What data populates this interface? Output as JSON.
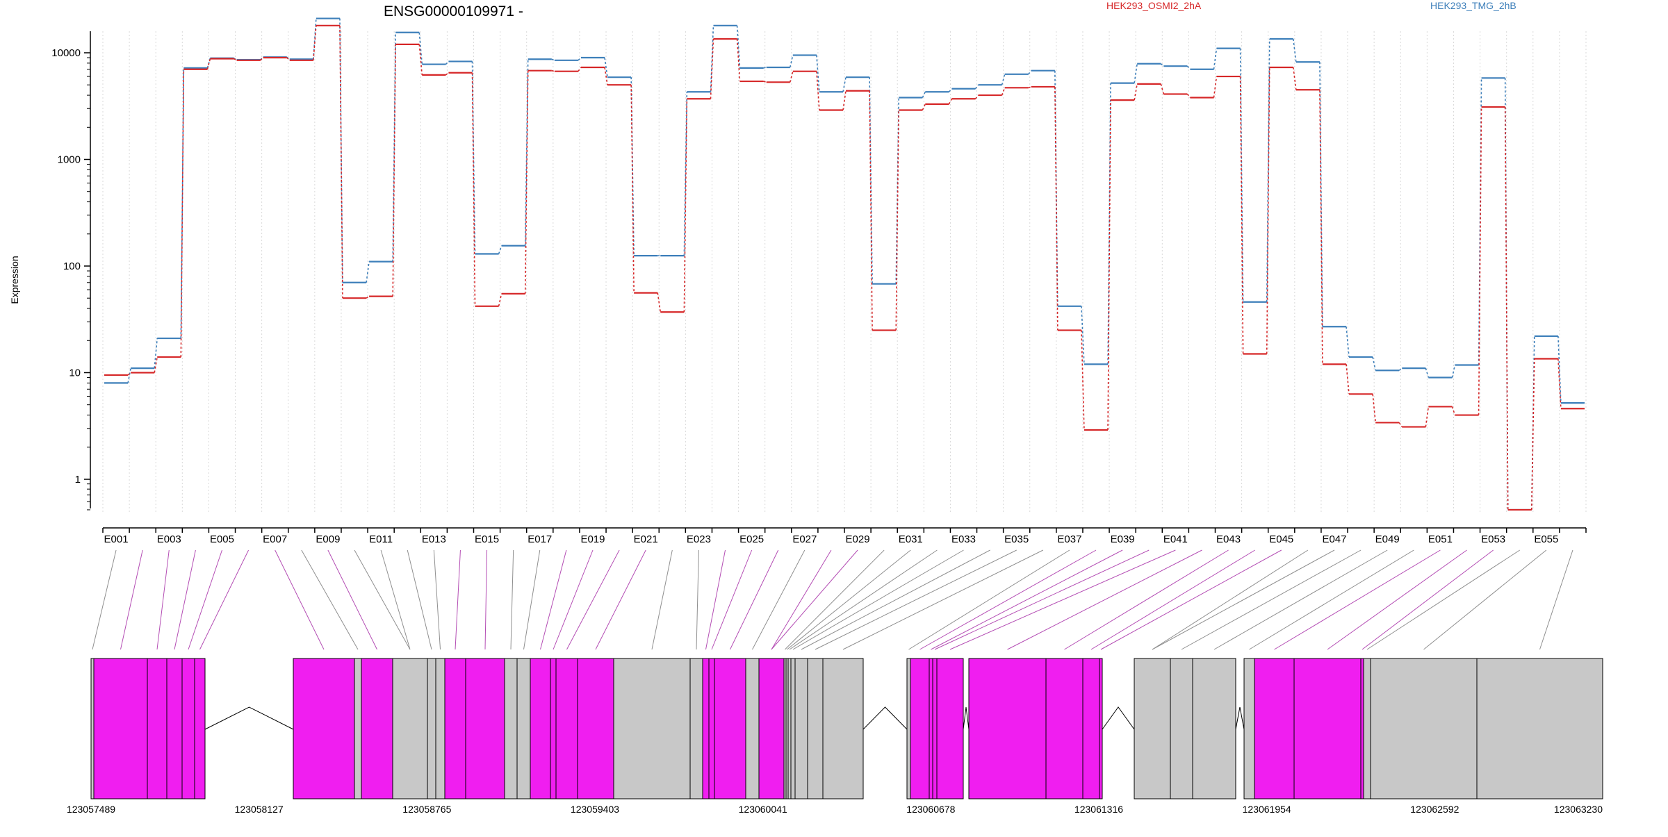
{
  "chart_data": {
    "type": "line",
    "title": "ENSG00000109971 -",
    "ylabel": "Expression",
    "yscale": "log",
    "ylim": [
      0.4,
      32000
    ],
    "ytick_values": [
      1,
      10,
      100,
      1000,
      10000
    ],
    "ytick_labels": [
      "1",
      "10",
      "100",
      "1000",
      "10000"
    ],
    "categories": [
      "E001",
      "E002",
      "E003",
      "E004",
      "E005",
      "E006",
      "E007",
      "E008",
      "E009",
      "E010",
      "E011",
      "E012",
      "E013",
      "E014",
      "E015",
      "E016",
      "E017",
      "E018",
      "E019",
      "E020",
      "E021",
      "E022",
      "E023",
      "E024",
      "E025",
      "E026",
      "E027",
      "E028",
      "E029",
      "E030",
      "E031",
      "E032",
      "E033",
      "E034",
      "E035",
      "E036",
      "E037",
      "E038",
      "E039",
      "E040",
      "E041",
      "E042",
      "E043",
      "E044",
      "E045",
      "E046",
      "E047",
      "E048",
      "E049",
      "E050",
      "E051",
      "E052",
      "E053",
      "E054",
      "E055",
      "E056"
    ],
    "xtick_labels": [
      "E001",
      "E003",
      "E005",
      "E007",
      "E009",
      "E011",
      "E013",
      "E015",
      "E017",
      "E019",
      "E021",
      "E023",
      "E025",
      "E027",
      "E029",
      "E031",
      "E033",
      "E035",
      "E037",
      "E039",
      "E041",
      "E043",
      "E045",
      "E047",
      "E049",
      "E051",
      "E053",
      "E055"
    ],
    "series": [
      {
        "name": "HEK293_OSMI2_2hA",
        "color": "#d62728",
        "values": [
          9.5,
          10,
          14,
          7000,
          8800,
          8500,
          9000,
          8500,
          18000,
          50,
          52,
          12000,
          6200,
          6500,
          42,
          55,
          6800,
          6700,
          7300,
          5000,
          56,
          37,
          3700,
          13500,
          5400,
          5300,
          6700,
          2900,
          4400,
          25,
          2900,
          3300,
          3700,
          4000,
          4700,
          4800,
          25,
          2.9,
          3600,
          5100,
          4100,
          3800,
          6000,
          15,
          7300,
          4500,
          12,
          6.3,
          3.4,
          3.1,
          4.8,
          4,
          3100,
          0.5,
          13.5,
          4.6
        ]
      },
      {
        "name": "HEK293_TMG_2hB",
        "color": "#3d7fba",
        "values": [
          8,
          11,
          21,
          7200,
          8900,
          8600,
          9100,
          8700,
          21000,
          70,
          110,
          15500,
          7800,
          8300,
          130,
          155,
          8700,
          8500,
          9000,
          5900,
          125,
          125,
          4300,
          18000,
          7200,
          7300,
          9500,
          4300,
          5900,
          68,
          3800,
          4300,
          4600,
          5000,
          6300,
          6800,
          42,
          12,
          5200,
          7900,
          7500,
          7000,
          11000,
          46,
          13500,
          8200,
          27,
          14,
          10.5,
          11,
          9,
          11.8,
          5800,
          0.5,
          22,
          5.2
        ]
      }
    ],
    "legend_position": "top",
    "grid": "vertical dotted",
    "gene_track": {
      "coordinate_labels": [
        "123057489",
        "123058127",
        "123058765",
        "123059403",
        "123060041",
        "123060678",
        "123061316",
        "123061954",
        "123062592",
        "123063230"
      ],
      "coordinate_range": [
        123057489,
        123063230
      ],
      "exon_fill_colors": {
        "highlighted": "#f01ef0",
        "normal": "#c8c8c8"
      }
    }
  }
}
